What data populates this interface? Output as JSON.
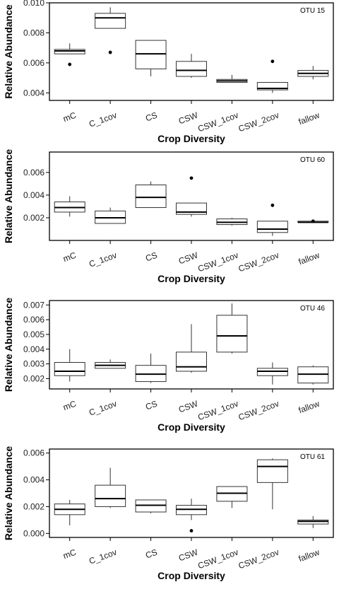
{
  "chart_data": [
    {
      "type": "box",
      "annotation": "OTU 15",
      "xlabel": "Crop Diversity",
      "ylabel": "Relative Abundance",
      "ylim": [
        0.0035,
        0.01
      ],
      "yticks": [
        0.004,
        0.006,
        0.008,
        0.01
      ],
      "ytick_labels": [
        "0.004",
        "0.006",
        "0.008",
        "0.010"
      ],
      "categories": [
        "mC",
        "C_1cov",
        "CS",
        "CSW",
        "CSW_1cov",
        "CSW_2cov",
        "fallow"
      ],
      "boxes": [
        {
          "whisker_low": 0.0066,
          "q1": 0.0066,
          "median": 0.0068,
          "q3": 0.0069,
          "whisker_high": 0.0073,
          "outliers": [
            0.0059
          ]
        },
        {
          "whisker_low": 0.0083,
          "q1": 0.0083,
          "median": 0.009,
          "q3": 0.0093,
          "whisker_high": 0.0097,
          "outliers": [
            0.0067
          ]
        },
        {
          "whisker_low": 0.0051,
          "q1": 0.0056,
          "median": 0.0066,
          "q3": 0.0075,
          "whisker_high": 0.0075,
          "outliers": []
        },
        {
          "whisker_low": 0.005,
          "q1": 0.0051,
          "median": 0.0055,
          "q3": 0.0061,
          "whisker_high": 0.0066,
          "outliers": []
        },
        {
          "whisker_low": 0.0047,
          "q1": 0.0047,
          "median": 0.0048,
          "q3": 0.0049,
          "whisker_high": 0.0052,
          "outliers": []
        },
        {
          "whisker_low": 0.004,
          "q1": 0.0042,
          "median": 0.0043,
          "q3": 0.0047,
          "whisker_high": 0.0047,
          "outliers": [
            0.0061
          ]
        },
        {
          "whisker_low": 0.0049,
          "q1": 0.0051,
          "median": 0.0053,
          "q3": 0.0055,
          "whisker_high": 0.0058,
          "outliers": []
        }
      ]
    },
    {
      "type": "box",
      "annotation": "OTU 60",
      "xlabel": "Crop Diversity",
      "ylabel": "Relative Abundance",
      "ylim": [
        0.0,
        0.0078
      ],
      "yticks": [
        0.002,
        0.004,
        0.006
      ],
      "ytick_labels": [
        "0.002",
        "0.004",
        "0.006"
      ],
      "categories": [
        "mC",
        "C_1cov",
        "CS",
        "CSW",
        "CSW_1cov",
        "CSW_2cov",
        "fallow"
      ],
      "boxes": [
        {
          "whisker_low": 0.0021,
          "q1": 0.0025,
          "median": 0.0029,
          "q3": 0.0034,
          "whisker_high": 0.0039,
          "outliers": []
        },
        {
          "whisker_low": 0.0015,
          "q1": 0.0015,
          "median": 0.002,
          "q3": 0.0026,
          "whisker_high": 0.0029,
          "outliers": []
        },
        {
          "whisker_low": 0.0029,
          "q1": 0.0029,
          "median": 0.0038,
          "q3": 0.0049,
          "whisker_high": 0.0052,
          "outliers": []
        },
        {
          "whisker_low": 0.0021,
          "q1": 0.0023,
          "median": 0.0025,
          "q3": 0.0033,
          "whisker_high": 0.0033,
          "outliers": [
            0.0055
          ]
        },
        {
          "whisker_low": 0.0013,
          "q1": 0.0014,
          "median": 0.0016,
          "q3": 0.0019,
          "whisker_high": 0.002,
          "outliers": []
        },
        {
          "whisker_low": 0.0004,
          "q1": 0.0007,
          "median": 0.001,
          "q3": 0.0017,
          "whisker_high": 0.0017,
          "outliers": [
            0.0031
          ]
        },
        {
          "whisker_low": 0.0016,
          "q1": 0.0016,
          "median": 0.0016,
          "q3": 0.0017,
          "whisker_high": 0.0017,
          "outliers": [
            0.0017
          ]
        }
      ]
    },
    {
      "type": "box",
      "annotation": "OTU 46",
      "xlabel": "Crop Diversity",
      "ylabel": "Relative Abundance",
      "ylim": [
        0.0013,
        0.0073
      ],
      "yticks": [
        0.002,
        0.003,
        0.004,
        0.005,
        0.006,
        0.007
      ],
      "ytick_labels": [
        "0.002",
        "0.003",
        "0.004",
        "0.005",
        "0.006",
        "0.007"
      ],
      "categories": [
        "mC",
        "C_1cov",
        "CS",
        "CSW",
        "CSW_1cov",
        "CSW_2cov",
        "fallow"
      ],
      "boxes": [
        {
          "whisker_low": 0.0018,
          "q1": 0.0022,
          "median": 0.0025,
          "q3": 0.0031,
          "whisker_high": 0.004,
          "outliers": []
        },
        {
          "whisker_low": 0.0027,
          "q1": 0.0027,
          "median": 0.0029,
          "q3": 0.0031,
          "whisker_high": 0.0033,
          "outliers": []
        },
        {
          "whisker_low": 0.0017,
          "q1": 0.0018,
          "median": 0.0023,
          "q3": 0.0029,
          "whisker_high": 0.0037,
          "outliers": []
        },
        {
          "whisker_low": 0.0024,
          "q1": 0.0025,
          "median": 0.0028,
          "q3": 0.0038,
          "whisker_high": 0.0057,
          "outliers": []
        },
        {
          "whisker_low": 0.0037,
          "q1": 0.0038,
          "median": 0.0049,
          "q3": 0.0063,
          "whisker_high": 0.0071,
          "outliers": []
        },
        {
          "whisker_low": 0.0016,
          "q1": 0.0022,
          "median": 0.0025,
          "q3": 0.0027,
          "whisker_high": 0.0031,
          "outliers": []
        },
        {
          "whisker_low": 0.0016,
          "q1": 0.0017,
          "median": 0.0023,
          "q3": 0.0028,
          "whisker_high": 0.0029,
          "outliers": []
        }
      ]
    },
    {
      "type": "box",
      "annotation": "OTU 61",
      "xlabel": "Crop Diversity",
      "ylabel": "Relative Abundance",
      "ylim": [
        -0.0003,
        0.0063
      ],
      "yticks": [
        0.0,
        0.002,
        0.004,
        0.006
      ],
      "ytick_labels": [
        "0.000",
        "0.002",
        "0.004",
        "0.006"
      ],
      "categories": [
        "mC",
        "C_1cov",
        "CS",
        "CSW",
        "CSW_1cov",
        "CSW_2cov",
        "fallow"
      ],
      "boxes": [
        {
          "whisker_low": 0.0006,
          "q1": 0.0014,
          "median": 0.0018,
          "q3": 0.0022,
          "whisker_high": 0.0025,
          "outliers": []
        },
        {
          "whisker_low": 0.0019,
          "q1": 0.002,
          "median": 0.0026,
          "q3": 0.0036,
          "whisker_high": 0.0049,
          "outliers": []
        },
        {
          "whisker_low": 0.0015,
          "q1": 0.0016,
          "median": 0.0021,
          "q3": 0.0025,
          "whisker_high": 0.0025,
          "outliers": []
        },
        {
          "whisker_low": 0.001,
          "q1": 0.0014,
          "median": 0.0018,
          "q3": 0.0021,
          "whisker_high": 0.0026,
          "outliers": [
            0.0002
          ]
        },
        {
          "whisker_low": 0.0019,
          "q1": 0.0024,
          "median": 0.003,
          "q3": 0.0035,
          "whisker_high": 0.0035,
          "outliers": []
        },
        {
          "whisker_low": 0.0018,
          "q1": 0.0038,
          "median": 0.005,
          "q3": 0.0055,
          "whisker_high": 0.0056,
          "outliers": []
        },
        {
          "whisker_low": 0.0004,
          "q1": 0.0007,
          "median": 0.0009,
          "q3": 0.001,
          "whisker_high": 0.0013,
          "outliers": []
        }
      ]
    }
  ]
}
